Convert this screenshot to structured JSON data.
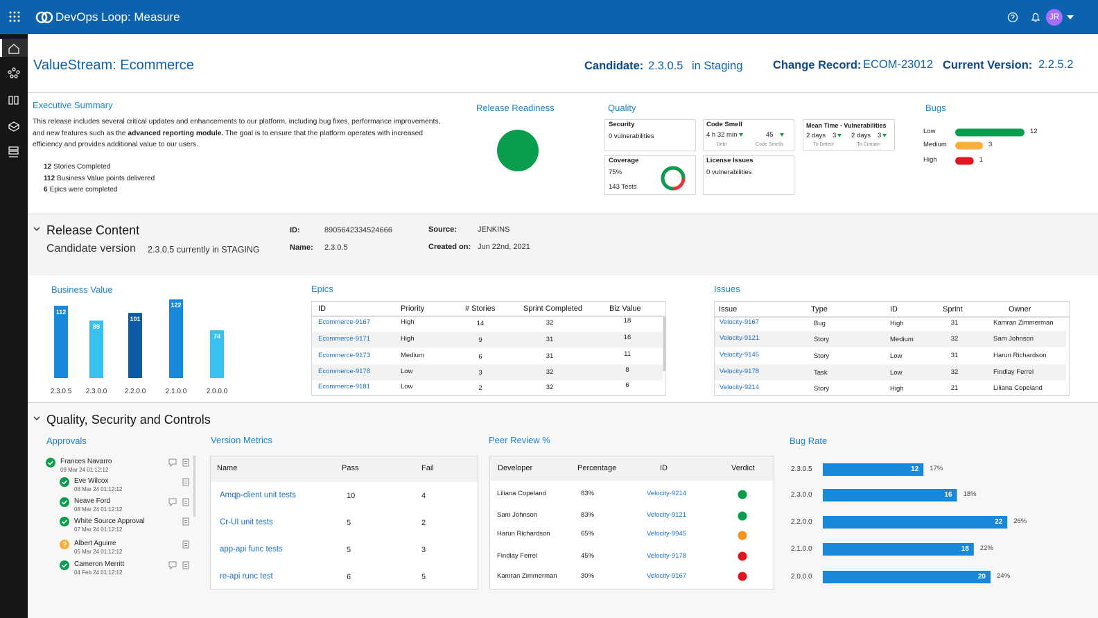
{
  "app": {
    "title": "DevOps Loop: Measure",
    "avatar": "JR"
  },
  "header": {
    "title": "ValueStream: Ecommerce",
    "candidate_label": "Candidate:",
    "candidate": "2.3.0.5",
    "candidate_env": "in Staging",
    "change_label": "Change Record:",
    "change": "ECOM-23012",
    "current_label": "Current Version:",
    "current": "2.2.5.2"
  },
  "summary": {
    "title": "Executive Summary",
    "text_1": "This release includes several critical updates and enhancements to our platform, including bug fixes, performance improvements, and new features such as the",
    "text_bold": "advanced reporting module.",
    "text_2": "The goal is to ensure that the platform operates with increased efficiency and provides additional value to our users.",
    "stats": [
      {
        "value": 12,
        "label": "Stories Completed"
      },
      {
        "value": 112,
        "label": "Business Value points delivered"
      },
      {
        "value": 6,
        "label": "Epics were completed"
      }
    ]
  },
  "release_readiness": {
    "title": "Release Readiness"
  },
  "quality": {
    "title": "Quality",
    "security": {
      "title": "Security",
      "text": "0 vulnerabilities"
    },
    "code_smell": {
      "title": "Code Smell",
      "debt": "4 h 32 min",
      "debt_label": "Debt",
      "smells": 45,
      "smells_label": "Code Smells"
    },
    "mttr": {
      "title": "Mean Time - Vulnerabilities",
      "detect": "2 days",
      "detect_n": 3,
      "detect_label": "To Detect",
      "contain": "2 days",
      "contain_n": 3,
      "contain_label": "To Contain"
    },
    "coverage": {
      "title": "Coverage",
      "value": 75,
      "label": "75%",
      "tests": "143 Tests",
      "color": "#0a9d4e",
      "rest_color": "#e8323c"
    },
    "license": {
      "title": "License Issues",
      "text": "0 vulnerabilities"
    }
  },
  "bugs": {
    "title": "Bugs",
    "items": [
      {
        "label": "Low",
        "value": 12,
        "color": "#0a9d4e"
      },
      {
        "label": "Medium",
        "value": 3,
        "color": "#f8b03a"
      },
      {
        "label": "High",
        "value": 1,
        "color": "#e2161e"
      }
    ]
  },
  "release_content": {
    "title": "Release Content",
    "subtitle_label": "Candidate version",
    "subtitle": "2.3.0.5 currently in STAGING",
    "id_label": "ID:",
    "id": "8905642334524666",
    "name_label": "Name:",
    "name": "2.3.0.5",
    "source_label": "Source:",
    "source": "JENKINS",
    "created_label": "Created on:",
    "created": "Jun 22nd, 2021"
  },
  "business_value": {
    "title": "Business Value",
    "bars": [
      {
        "label": "2.3.0.5",
        "value": 112,
        "color": "#1a88d8"
      },
      {
        "label": "2.3.0.0",
        "value": 89,
        "color": "#38c0ee"
      },
      {
        "label": "2.2.0.0",
        "value": 101,
        "color": "#0e5aa7"
      },
      {
        "label": "2.1.0.0",
        "value": 122,
        "color": "#1a88d8"
      },
      {
        "label": "2.0.0.0",
        "value": 74,
        "color": "#38c0ee"
      }
    ]
  },
  "epics": {
    "title": "Epics",
    "columns": [
      "ID",
      "Priority",
      "# Stories",
      "Sprint Completed",
      "Biz Value"
    ],
    "rows": [
      [
        "Ecommerce-9167",
        "High",
        14,
        32,
        18
      ],
      [
        "Ecommerce-9171",
        "High",
        9,
        31,
        16
      ],
      [
        "Ecommerce-9173",
        "Medium",
        6,
        31,
        11
      ],
      [
        "Ecommerce-9178",
        "Low",
        3,
        32,
        8
      ],
      [
        "Ecommerce-9181",
        "Low",
        2,
        32,
        6
      ]
    ]
  },
  "issues": {
    "title": "Issues",
    "columns": [
      "Issue",
      "Type",
      "ID",
      "Sprint",
      "Owner"
    ],
    "rows": [
      [
        "Velocity-9167",
        "Bug",
        "High",
        31,
        "Kamran Zimmerman"
      ],
      [
        "Velocity-9121",
        "Story",
        "Medium",
        32,
        "Sam Johnson"
      ],
      [
        "Velocity-9145",
        "Story",
        "Low",
        31,
        "Harun Richardson"
      ],
      [
        "Velocity-9178",
        "Task",
        "Low",
        32,
        "Findlay Ferrel"
      ],
      [
        "Velocity-9214",
        "Story",
        "High",
        21,
        "Liliana Copeland"
      ]
    ]
  },
  "quality_section": {
    "title": "Quality, Security and Controls"
  },
  "approvals": {
    "title": "Approvals",
    "name": "Frances Navarro",
    "date": "09 Mar 24 01:12:12",
    "status": "approved",
    "comment": true,
    "children": [
      {
        "name": "Eve Wilcox",
        "date": "08 Mar 24 01:12:12",
        "status": "approved",
        "comment": false
      },
      {
        "name": "Neave Ford",
        "date": "08 Mar 24 01:12:12",
        "status": "approved",
        "comment": true
      },
      {
        "name": "White Source Approval",
        "date": "07 Mar 24 01:12:12",
        "status": "approved",
        "comment": false
      },
      {
        "name": "Albert Aguirre",
        "date": "05 Mar 24 01:12:12",
        "status": "pending",
        "comment": false
      },
      {
        "name": "Cameron Merritt",
        "date": "04 Feb 24 01:12:12",
        "status": "approved",
        "comment": true
      }
    ]
  },
  "version_metrics": {
    "title": "Version Metrics",
    "columns": [
      "Name",
      "Pass",
      "Fail"
    ],
    "rows": [
      [
        "Amqp-client unit tests",
        10,
        4
      ],
      [
        "Cr-UI unit tests",
        5,
        2
      ],
      [
        "app-api func tests",
        5,
        3
      ],
      [
        "re-api runc test",
        6,
        5
      ]
    ]
  },
  "peer_review": {
    "title": "Peer Review %",
    "columns": [
      "Developer",
      "Percentage",
      "ID",
      "Verdict"
    ],
    "rows": [
      [
        "Liliana Copeland",
        "83%",
        "Velocity-9214"
      ],
      [
        "Sam Johnson",
        "83%",
        "Velocity-9121"
      ],
      [
        "Harun Richardson",
        "65%",
        "Velocity-9945"
      ],
      [
        "Findlay Ferrel",
        "45%",
        "Velocity-9178"
      ],
      [
        "Kamran Zimmerman",
        "30%",
        "Velocity-9167"
      ]
    ],
    "verdict_colors": [
      "#0a9d4e",
      "#0a9d4e",
      "#f7931e",
      "#e2161e",
      "#e2161e"
    ]
  },
  "bug_rate": {
    "title": "Bug Rate",
    "color": "#1a88d8",
    "items": [
      {
        "label": "2.3.0.5",
        "value": 12,
        "percent": "17%"
      },
      {
        "label": "2.3.0.0",
        "value": 16,
        "percent": "18%"
      },
      {
        "label": "2.2.0.0",
        "value": 22,
        "percent": "26%"
      },
      {
        "label": "2.1.0.0",
        "value": 18,
        "percent": "22%"
      },
      {
        "label": "2.0.0.0",
        "value": 20,
        "percent": "24%"
      }
    ]
  }
}
